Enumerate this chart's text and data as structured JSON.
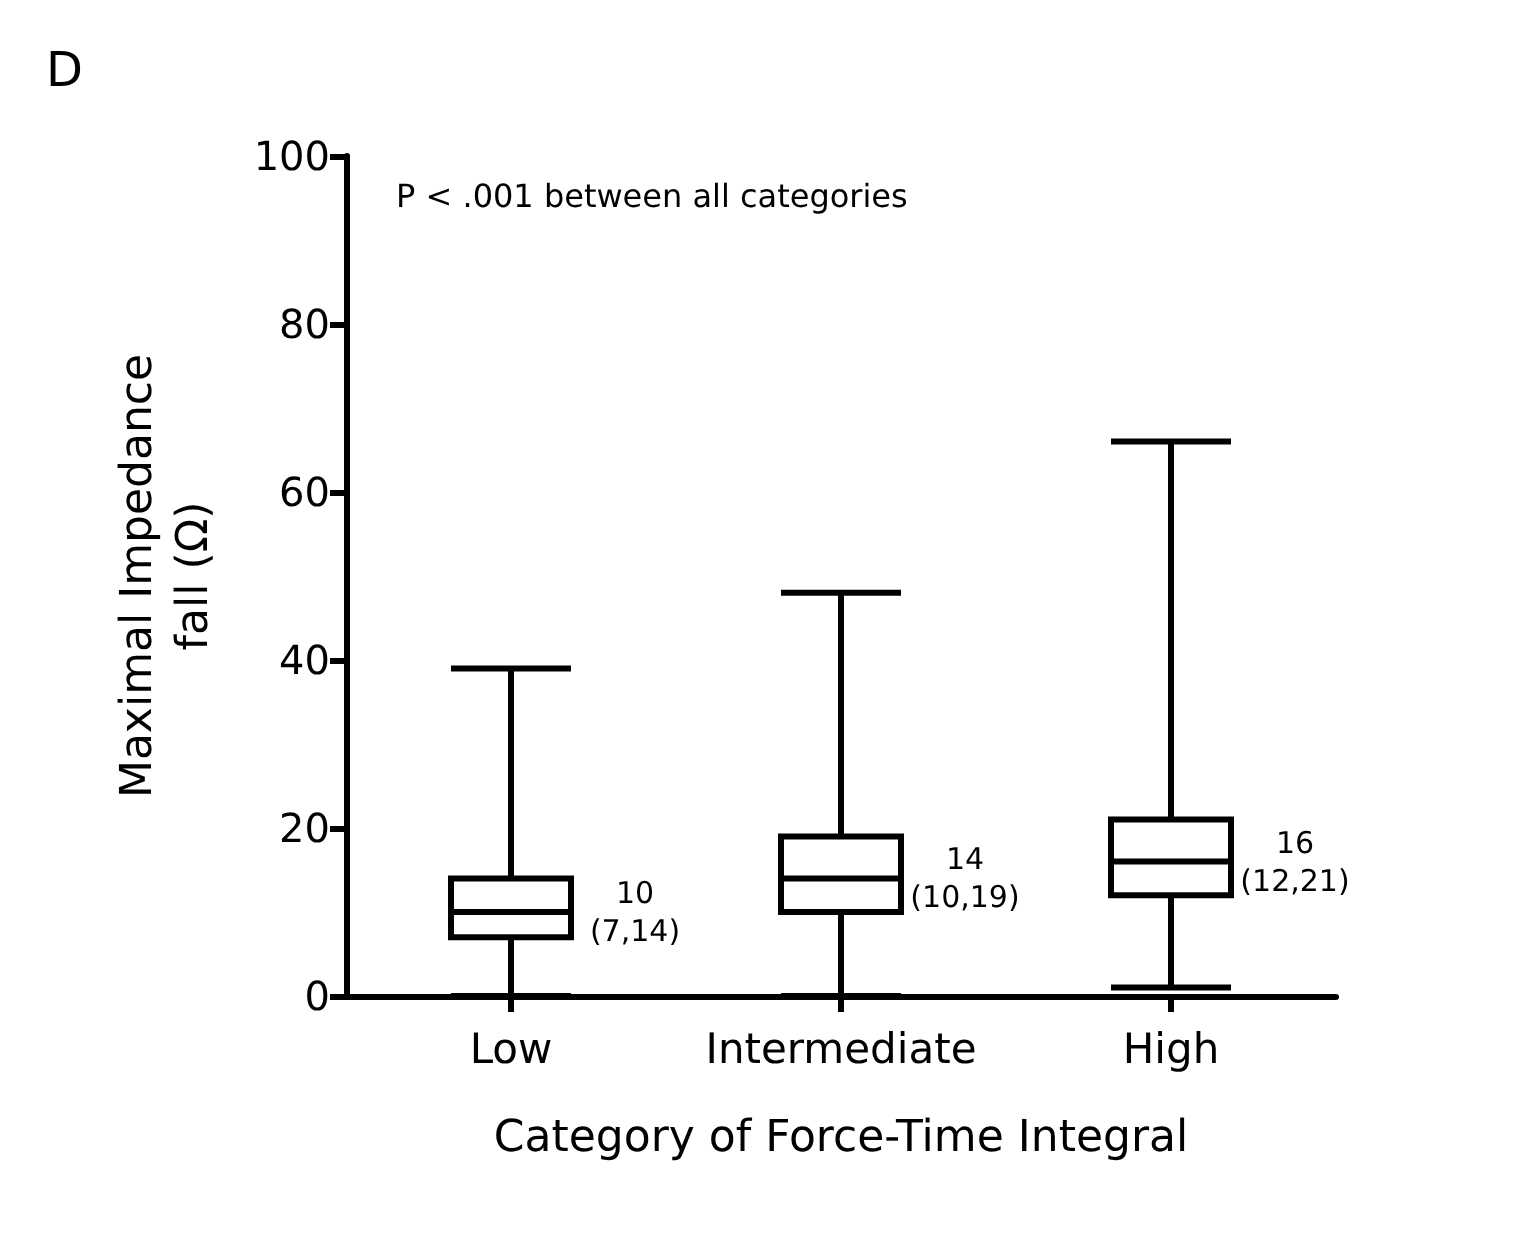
{
  "chart_data": {
    "type": "box",
    "title": "D",
    "categories": [
      "Low",
      "Intermediate",
      "High"
    ],
    "boxes": [
      {
        "low": 0,
        "q1": 7,
        "median": 10,
        "q3": 14,
        "high": 39
      },
      {
        "low": 0,
        "q1": 10,
        "median": 14,
        "q3": 19,
        "high": 48
      },
      {
        "low": 1,
        "q1": 12,
        "median": 16,
        "q3": 21,
        "high": 66
      }
    ],
    "color": "#000000",
    "xlabel": "Category of Force-Time Integral",
    "ylabel": "Maximal Impedance fall (Ω)",
    "ylim": [
      0,
      100
    ],
    "yticks": [
      0,
      20,
      40,
      60,
      80,
      100
    ],
    "annotations": [
      "P < .001 between all categories",
      {
        "text": "10\n(7,14)",
        "x": "Low",
        "y": 10
      },
      {
        "text": "14\n(10,19)",
        "x": "Intermediate",
        "y": 14
      },
      {
        "text": "16\n(12,21)",
        "x": "High",
        "y": 16
      }
    ]
  }
}
